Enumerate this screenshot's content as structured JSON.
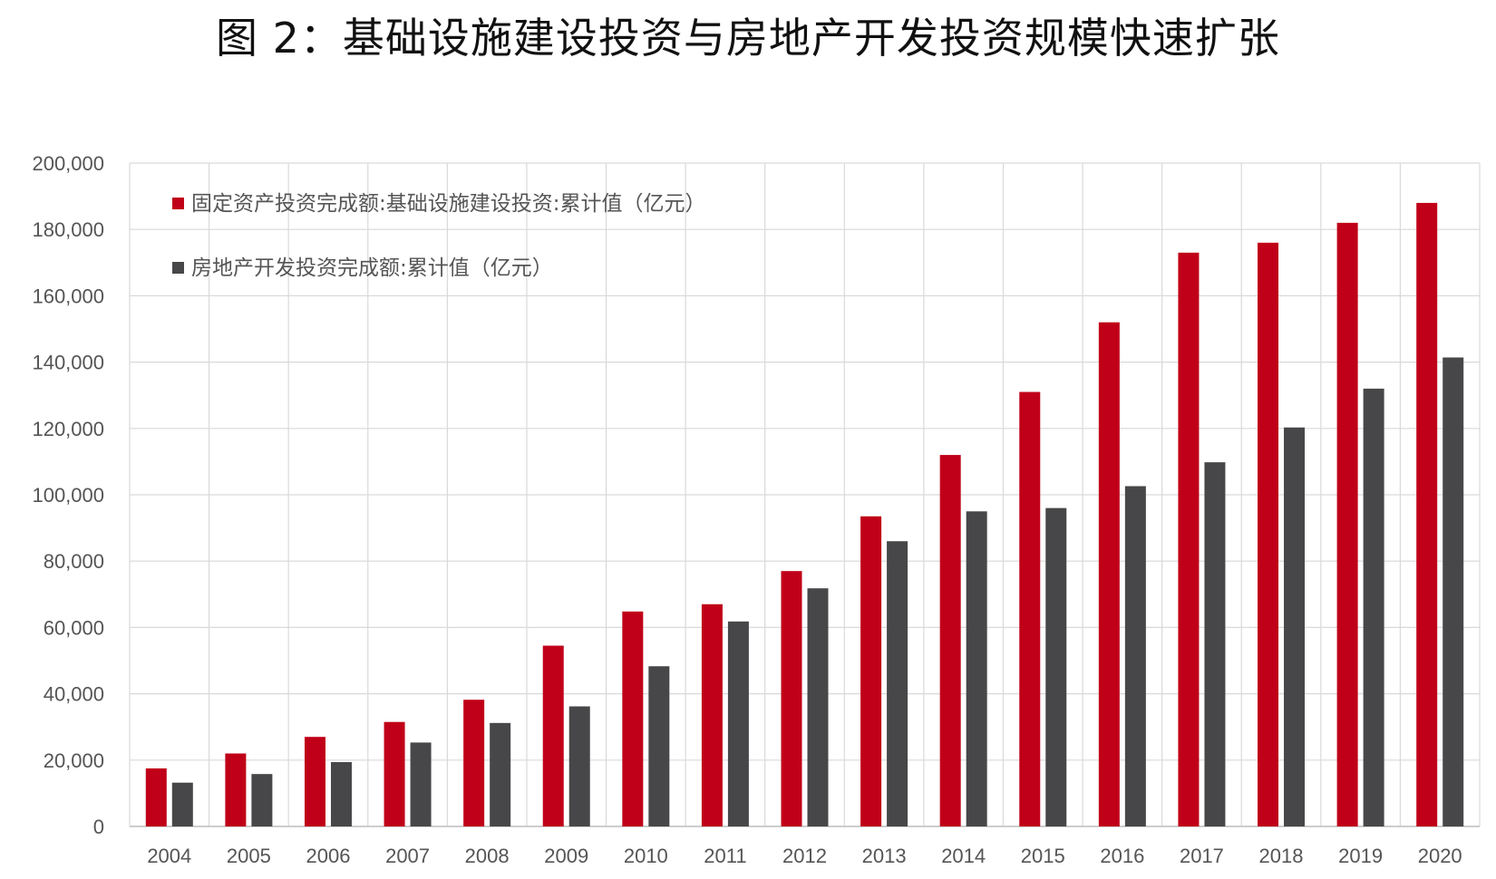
{
  "chart_data": {
    "type": "bar",
    "title": "图 2：基础设施建设投资与房地产开发投资规模快速扩张",
    "categories": [
      "2004",
      "2005",
      "2006",
      "2007",
      "2008",
      "2009",
      "2010",
      "2011",
      "2012",
      "2013",
      "2014",
      "2015",
      "2016",
      "2017",
      "2018",
      "2019",
      "2020"
    ],
    "series": [
      {
        "name": "固定资产投资完成额:基础设施建设投资:累计值（亿元）",
        "color": "#c00018",
        "values": [
          17500,
          22000,
          27000,
          31500,
          38200,
          54500,
          64800,
          67000,
          77000,
          93500,
          112000,
          131000,
          152000,
          173000,
          176000,
          182000,
          188000
        ]
      },
      {
        "name": "房地产开发投资完成额:累计值（亿元）",
        "color": "#474749",
        "values": [
          13200,
          15800,
          19400,
          25300,
          31200,
          36200,
          48300,
          61800,
          71800,
          86000,
          95000,
          96000,
          102600,
          109800,
          120300,
          132000,
          141400
        ]
      }
    ],
    "ylim": [
      0,
      200000
    ],
    "yticks": [
      "0",
      "20,000",
      "40,000",
      "60,000",
      "80,000",
      "100,000",
      "120,000",
      "140,000",
      "160,000",
      "180,000",
      "200,000"
    ],
    "grid": true,
    "legend_position": "top-left",
    "xlabel": "",
    "ylabel": ""
  }
}
